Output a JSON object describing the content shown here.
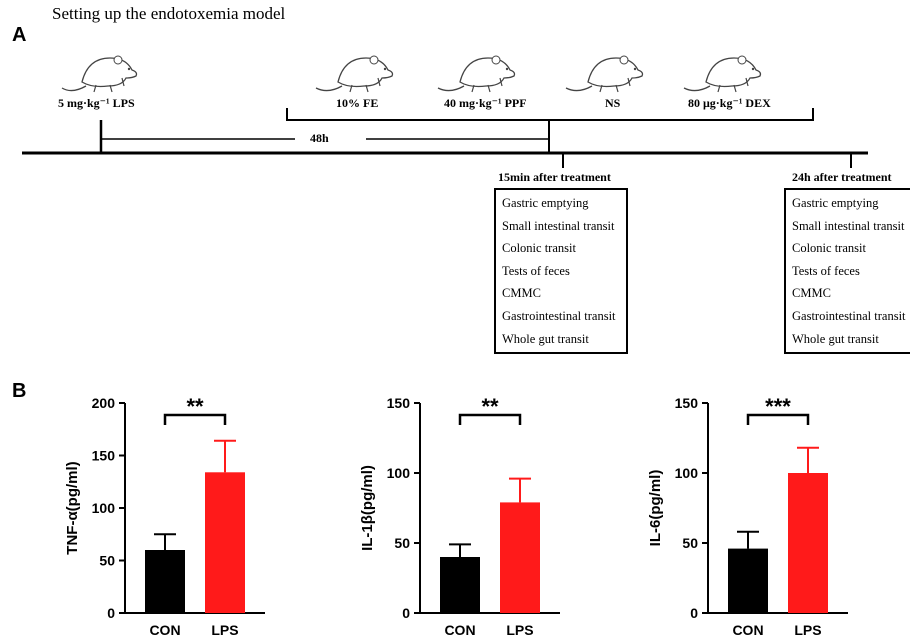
{
  "page_title": "Setting up the endotoxemia model",
  "panel_a": {
    "letter": "A",
    "lps_label": "5 mg·kg⁻¹ LPS",
    "treatments": [
      "10% FE",
      "40 mg·kg⁻¹ PPF",
      "NS",
      "80 μg·kg⁻¹ DEX"
    ],
    "interval_label": "48h",
    "timepoint_1": {
      "label": "15min after treatment",
      "items": [
        "Gastric emptying",
        "Small intestinal transit",
        "Colonic transit",
        "Tests of feces",
        "CMMC",
        "Gastrointestinal transit",
        "Whole gut transit"
      ]
    },
    "timepoint_2": {
      "label": "24h after treatment",
      "items": [
        "Gastric emptying",
        "Small intestinal transit",
        "Colonic transit",
        "Tests of feces",
        "CMMC",
        "Gastrointestinal transit",
        "Whole gut transit"
      ]
    }
  },
  "panel_b": {
    "letter": "B"
  },
  "colors": {
    "con": "#000000",
    "lps": "#ff1a1a",
    "axis": "#000000"
  },
  "chart_data": [
    {
      "type": "bar",
      "categories": [
        "CON",
        "LPS"
      ],
      "values": [
        60,
        134
      ],
      "errors": [
        15,
        30
      ],
      "ylabel": "TNF-α(pg/ml)",
      "ylim": [
        0,
        200
      ],
      "yticks": [
        0,
        50,
        100,
        150,
        200
      ],
      "significance": "**"
    },
    {
      "type": "bar",
      "categories": [
        "CON",
        "LPS"
      ],
      "values": [
        40,
        79
      ],
      "errors": [
        9,
        17
      ],
      "ylabel": "IL-1β(pg/ml)",
      "ylim": [
        0,
        150
      ],
      "yticks": [
        0,
        50,
        100,
        150
      ],
      "significance": "**"
    },
    {
      "type": "bar",
      "categories": [
        "CON",
        "LPS"
      ],
      "values": [
        46,
        100
      ],
      "errors": [
        12,
        18
      ],
      "ylabel": "IL-6(pg/ml)",
      "ylim": [
        0,
        150
      ],
      "yticks": [
        0,
        50,
        100,
        150
      ],
      "significance": "***"
    }
  ]
}
